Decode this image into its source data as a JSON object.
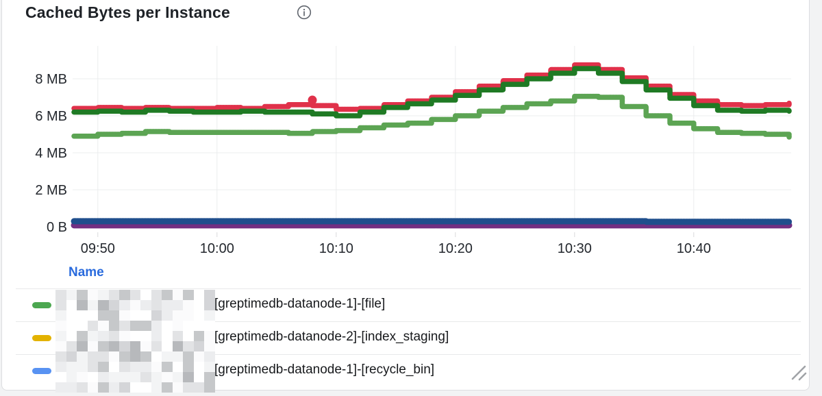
{
  "panel": {
    "title": "Cached Bytes per Instance",
    "info_icon": "info-circle"
  },
  "legend": {
    "name_header": "Name",
    "rows": [
      {
        "marker_color": "#4ca750",
        "label": "[greptimedb-datanode-1]-[file]",
        "redacted_prefix": true
      },
      {
        "marker_color": "#e3b200",
        "label": "[greptimedb-datanode-2]-[index_staging]",
        "redacted_prefix": true
      },
      {
        "marker_color": "#5892f2",
        "label": "[greptimedb-datanode-1]-[recycle_bin]",
        "redacted_prefix": true
      }
    ]
  },
  "chart_data": {
    "type": "line",
    "title": "Cached Bytes per Instance",
    "line_style": "step-points",
    "grid": true,
    "legend_position": "bottom-table",
    "xlabel": "",
    "ylabel": "",
    "x_ticks": [
      "09:50",
      "10:00",
      "10:10",
      "10:20",
      "10:30",
      "10:40"
    ],
    "x_tick_minutes": [
      2,
      12,
      22,
      32,
      42,
      52
    ],
    "x_range_minutes": [
      0,
      60
    ],
    "y_ticks": [
      "0 B",
      "2 MB",
      "4 MB",
      "6 MB",
      "8 MB"
    ],
    "y_tick_values": [
      0,
      2,
      4,
      6,
      8
    ],
    "y_unit": "MB",
    "ylim": [
      0,
      9.3
    ],
    "axis_color": "#23272d",
    "grid_color": "#ebecee",
    "series": [
      {
        "id": "series-red",
        "color": "#e0314a",
        "width": 7.5,
        "points": [
          [
            0,
            6.4
          ],
          [
            2,
            6.45
          ],
          [
            4,
            6.4
          ],
          [
            6,
            6.45
          ],
          [
            8,
            6.4
          ],
          [
            10,
            6.4
          ],
          [
            12,
            6.45
          ],
          [
            14,
            6.4
          ],
          [
            16,
            6.5
          ],
          [
            18,
            6.6
          ],
          [
            20,
            6.55
          ],
          [
            22,
            6.35
          ],
          [
            24,
            6.4
          ],
          [
            26,
            6.6
          ],
          [
            28,
            6.8
          ],
          [
            30,
            7.0
          ],
          [
            32,
            7.3
          ],
          [
            34,
            7.6
          ],
          [
            36,
            7.9
          ],
          [
            38,
            8.2
          ],
          [
            40,
            8.5
          ],
          [
            42,
            8.75
          ],
          [
            44,
            8.5
          ],
          [
            46,
            8.05
          ],
          [
            48,
            7.6
          ],
          [
            50,
            7.15
          ],
          [
            52,
            6.8
          ],
          [
            54,
            6.6
          ],
          [
            56,
            6.55
          ],
          [
            58,
            6.6
          ],
          [
            60,
            6.7
          ]
        ],
        "outlier_point": [
          20,
          6.85
        ]
      },
      {
        "id": "series-dark-green",
        "color": "#1f7a24",
        "width": 7.5,
        "points": [
          [
            0,
            6.2
          ],
          [
            2,
            6.25
          ],
          [
            4,
            6.2
          ],
          [
            6,
            6.3
          ],
          [
            8,
            6.25
          ],
          [
            10,
            6.2
          ],
          [
            12,
            6.2
          ],
          [
            14,
            6.25
          ],
          [
            16,
            6.2
          ],
          [
            18,
            6.2
          ],
          [
            20,
            6.1
          ],
          [
            22,
            6.0
          ],
          [
            24,
            6.2
          ],
          [
            26,
            6.45
          ],
          [
            28,
            6.65
          ],
          [
            30,
            6.85
          ],
          [
            32,
            7.1
          ],
          [
            34,
            7.4
          ],
          [
            36,
            7.7
          ],
          [
            38,
            8.0
          ],
          [
            40,
            8.3
          ],
          [
            42,
            8.55
          ],
          [
            44,
            8.3
          ],
          [
            46,
            7.85
          ],
          [
            48,
            7.4
          ],
          [
            50,
            6.95
          ],
          [
            52,
            6.55
          ],
          [
            54,
            6.3
          ],
          [
            56,
            6.25
          ],
          [
            58,
            6.3
          ],
          [
            60,
            6.25
          ]
        ]
      },
      {
        "id": "series-light-green",
        "color": "#5ca453",
        "width": 7.5,
        "points": [
          [
            0,
            4.9
          ],
          [
            2,
            5.0
          ],
          [
            4,
            5.05
          ],
          [
            6,
            5.15
          ],
          [
            8,
            5.1
          ],
          [
            10,
            5.1
          ],
          [
            12,
            5.1
          ],
          [
            14,
            5.1
          ],
          [
            16,
            5.1
          ],
          [
            18,
            5.05
          ],
          [
            20,
            5.15
          ],
          [
            22,
            5.2
          ],
          [
            24,
            5.35
          ],
          [
            26,
            5.5
          ],
          [
            28,
            5.6
          ],
          [
            30,
            5.8
          ],
          [
            32,
            6.0
          ],
          [
            34,
            6.25
          ],
          [
            36,
            6.45
          ],
          [
            38,
            6.65
          ],
          [
            40,
            6.8
          ],
          [
            42,
            7.05
          ],
          [
            44,
            7.0
          ],
          [
            46,
            6.5
          ],
          [
            48,
            6.0
          ],
          [
            50,
            5.6
          ],
          [
            52,
            5.3
          ],
          [
            54,
            5.1
          ],
          [
            56,
            5.05
          ],
          [
            58,
            5.0
          ],
          [
            60,
            4.85
          ]
        ]
      },
      {
        "id": "series-purple",
        "color": "#722f81",
        "width": 9,
        "points": [
          [
            0,
            0.08
          ],
          [
            60,
            0.08
          ]
        ]
      },
      {
        "id": "series-dark-blue",
        "color": "#1f4e8c",
        "width": 9,
        "points": [
          [
            0,
            0.3
          ],
          [
            46,
            0.3
          ],
          [
            48,
            0.27
          ],
          [
            60,
            0.27
          ]
        ]
      }
    ]
  }
}
